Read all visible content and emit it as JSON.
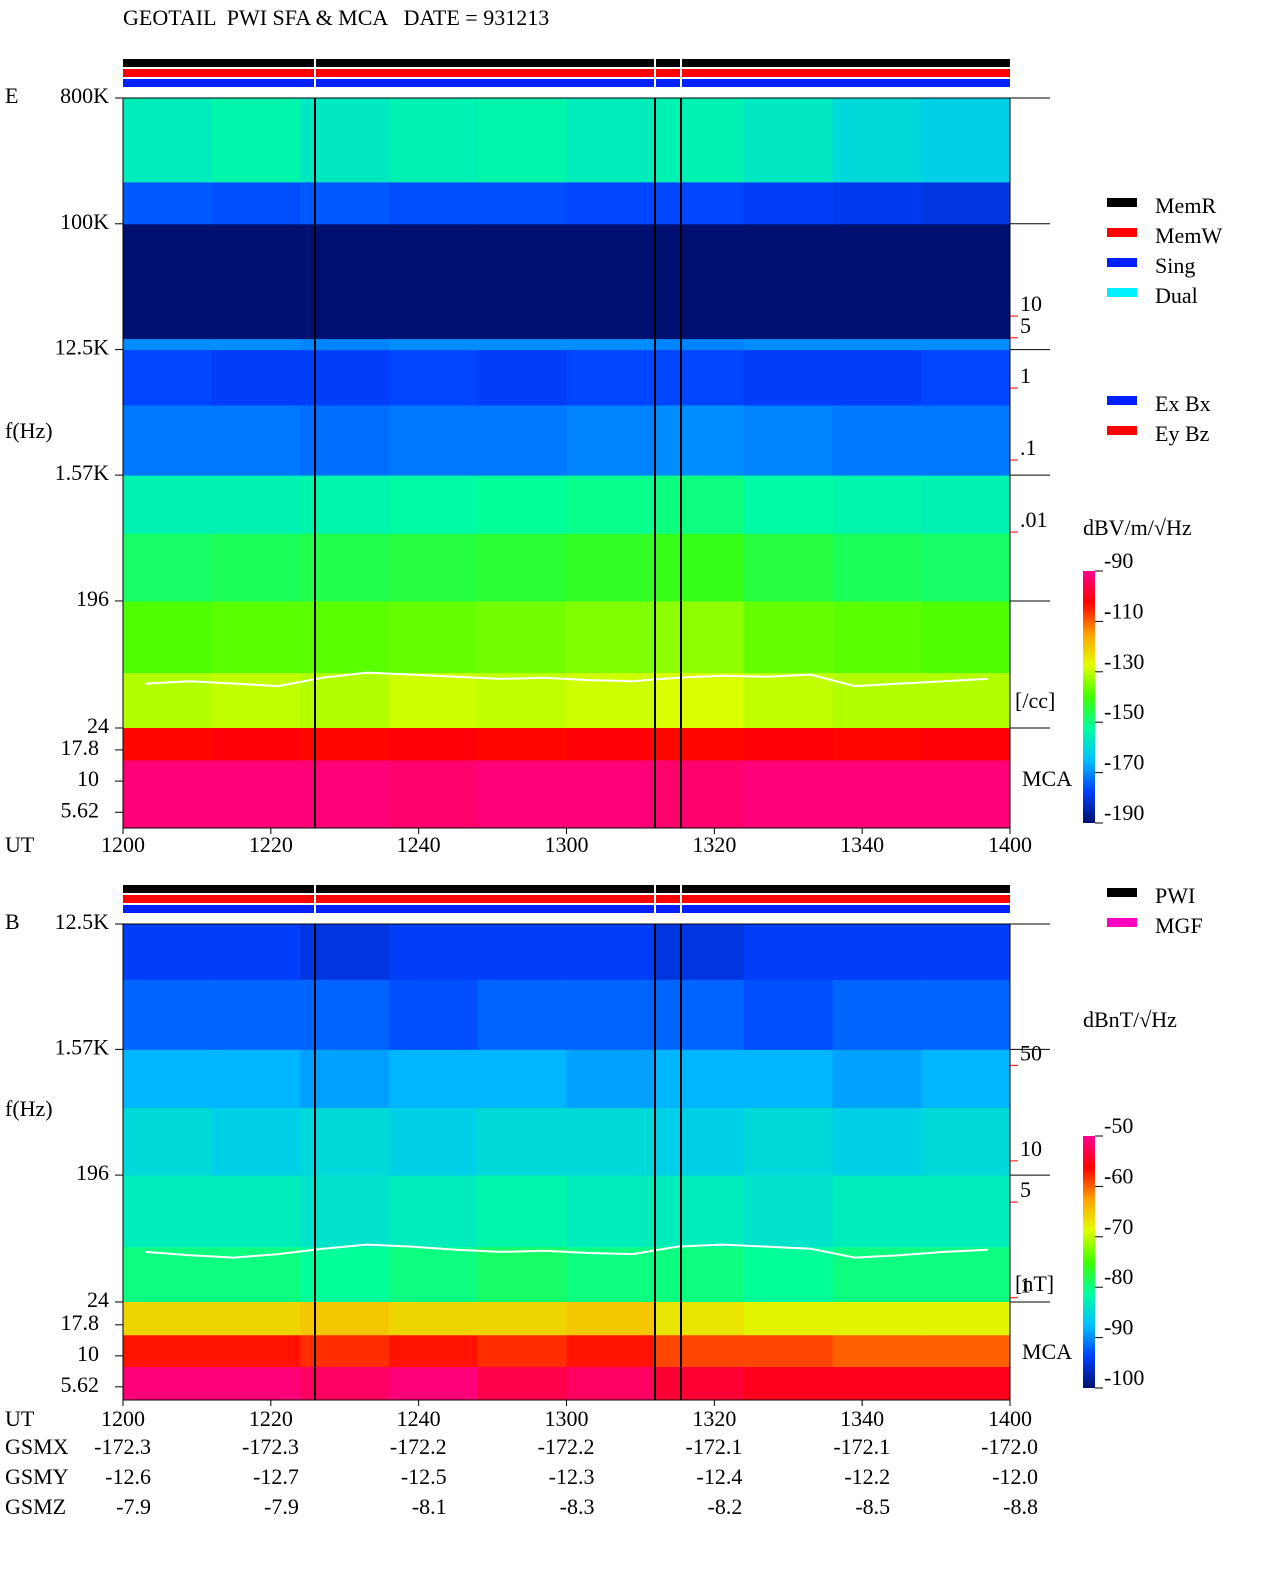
{
  "title": "GEOTAIL  PWI SFA & MCA   DATE = 931213",
  "colormap": [
    "#001070",
    "#0040ff",
    "#00c0ff",
    "#00ffa0",
    "#40ff00",
    "#e0ff00",
    "#ffa000",
    "#ff0000",
    "#ff0090"
  ],
  "chart_data": [
    {
      "type": "spectrogram",
      "component": "E",
      "ylabel": "f(Hz)",
      "xlabel": "UT",
      "xticks": [
        "1200",
        "1220",
        "1240",
        "1300",
        "1320",
        "1340",
        "1400"
      ],
      "ylim": [
        24,
        800000
      ],
      "yticks": [
        {
          "value": 800000,
          "label": "800K"
        },
        {
          "value": 100000,
          "label": "100K"
        },
        {
          "value": 12500,
          "label": "12.5K"
        },
        {
          "value": 1570,
          "label": "1.57K"
        },
        196,
        24
      ],
      "freq_edges": [
        24,
        60,
        196,
        600,
        1570,
        5000,
        12500,
        15000,
        100000,
        200000,
        800000
      ],
      "values": [
        [
          -131,
          -130,
          -131,
          -129,
          -130,
          -129,
          -128,
          -130,
          -131,
          -131
        ],
        [
          -139,
          -138,
          -138,
          -137,
          -136,
          -135,
          -134,
          -137,
          -138,
          -139
        ],
        [
          -148,
          -147,
          -146,
          -145,
          -144,
          -143,
          -142,
          -145,
          -147,
          -148
        ],
        [
          -155,
          -155,
          -154,
          -153,
          -152,
          -151,
          -150,
          -153,
          -154,
          -155
        ],
        [
          -172,
          -172,
          -173,
          -172,
          -172,
          -171,
          -170,
          -171,
          -172,
          -172
        ],
        [
          -177,
          -178,
          -178,
          -177,
          -178,
          -177,
          -177,
          -178,
          -178,
          -177
        ],
        [
          -170,
          -170,
          -171,
          -170,
          -170,
          -170,
          -171,
          -170,
          -170,
          -170
        ],
        [
          -192,
          -192,
          -192,
          -192,
          -192,
          -192,
          -192,
          -192,
          -192,
          -191
        ],
        [
          -175,
          -176,
          -175,
          -176,
          -176,
          -177,
          -177,
          -178,
          -179,
          -180
        ],
        [
          -156,
          -154,
          -157,
          -155,
          -154,
          -156,
          -155,
          -157,
          -160,
          -162
        ]
      ],
      "mca_label": "MCA",
      "mca_ylim": [
        4.2,
        26.7
      ],
      "mca_yticks": [
        17.8,
        10,
        5.62
      ],
      "mca_edges": [
        4.2,
        14.8,
        26.7
      ],
      "mca_values": [
        [
          -92,
          -92,
          -92,
          -93,
          -92,
          -92,
          -93,
          -92,
          -92,
          -92
        ],
        [
          -103,
          -102,
          -103,
          -102,
          -103,
          -102,
          -103,
          -102,
          -103,
          -102
        ]
      ],
      "line": {
        "color": "#ffffff",
        "values": [
          50,
          52,
          50,
          48,
          55,
          60,
          58,
          56,
          54,
          55,
          53,
          52,
          55,
          57,
          56,
          58,
          48,
          50,
          52,
          54
        ]
      },
      "aux_axis": {
        "label": "[/cc]",
        "color": "#ff0000",
        "lim": [
          1.9e-05,
          10700
        ],
        "ticks": [
          10,
          5,
          1,
          {
            "value": 0.1,
            "label": ".1"
          },
          {
            "value": 0.01,
            "label": ".01"
          }
        ]
      },
      "colorbar": {
        "label": "dBV/m/√Hz",
        "clim": [
          -190,
          -90
        ],
        "ticks": [
          -90,
          -110,
          -130,
          -150,
          -170,
          -190
        ]
      },
      "legends": [
        [
          {
            "name": "MemR",
            "color": "#000000"
          },
          {
            "name": "MemW",
            "color": "#ff0000"
          },
          {
            "name": "Sing",
            "color": "#0020ff"
          },
          {
            "name": "Dual",
            "color": "#00f0ff"
          }
        ],
        [
          {
            "name": "Ex Bx",
            "color": "#0020ff"
          },
          {
            "name": "Ey Bz",
            "color": "#ff0000"
          }
        ]
      ]
    },
    {
      "type": "spectrogram",
      "component": "B",
      "ylabel": "f(Hz)",
      "xlabel": "UT",
      "xticks": [
        "1200",
        "1220",
        "1240",
        "1300",
        "1320",
        "1340",
        "1400"
      ],
      "ylim": [
        24,
        12500
      ],
      "yticks": [
        {
          "value": 12500,
          "label": "12.5K"
        },
        {
          "value": 1570,
          "label": "1.57K"
        },
        196,
        24
      ],
      "freq_edges": [
        24,
        60,
        196,
        600,
        1570,
        5000,
        12500
      ],
      "values": [
        [
          -80,
          -80,
          -81,
          -80,
          -79,
          -80,
          -80,
          -81,
          -80,
          -80
        ],
        [
          -83,
          -83,
          -84,
          -83,
          -82,
          -83,
          -83,
          -84,
          -83,
          -83
        ],
        [
          -85,
          -86,
          -85,
          -86,
          -85,
          -85,
          -86,
          -85,
          -86,
          -85
        ],
        [
          -88,
          -88,
          -89,
          -88,
          -88,
          -89,
          -88,
          -88,
          -89,
          -88
        ],
        [
          -92,
          -92,
          -92,
          -93,
          -92,
          -92,
          -92,
          -93,
          -92,
          -92
        ],
        [
          -94,
          -94,
          -95,
          -94,
          -94,
          -94,
          -95,
          -94,
          -94,
          -94
        ]
      ],
      "mca_label": "MCA",
      "mca_ylim": [
        4.4,
        27.2
      ],
      "mca_yticks": [
        17.8,
        10,
        5.62
      ],
      "mca_edges": [
        4.4,
        8.2,
        14.8,
        27.2
      ],
      "mca_values": [
        [
          -51,
          -51,
          -52,
          -51,
          -53,
          -52,
          -54,
          -55,
          -55,
          -55
        ],
        [
          -57,
          -57,
          -58,
          -57,
          -58,
          -57,
          -59,
          -59,
          -60,
          -60
        ],
        [
          -66,
          -66,
          -65,
          -66,
          -66,
          -65,
          -67,
          -68,
          -68,
          -68
        ]
      ],
      "line": {
        "color": "#ffffff",
        "values": [
          55,
          52,
          50,
          53,
          58,
          62,
          60,
          57,
          55,
          56,
          54,
          53,
          60,
          62,
          60,
          58,
          50,
          52,
          55,
          57
        ]
      },
      "aux_axis": {
        "label": "[nT]",
        "color": "#ff0000",
        "lim": [
          0.93,
          540
        ],
        "ticks": [
          50,
          10,
          5,
          1
        ]
      },
      "colorbar": {
        "label": "dBnT/√Hz",
        "clim": [
          -100,
          -50
        ],
        "ticks": [
          -50,
          -60,
          -70,
          -80,
          -90,
          -100
        ]
      },
      "legends": [
        [
          {
            "name": "PWI",
            "color": "#000000"
          },
          {
            "name": "MGF",
            "color": "#ff00c0"
          }
        ]
      ]
    }
  ],
  "orbit": {
    "rows": [
      {
        "label": "GSMX",
        "values": [
          "-172.3",
          "-172.3",
          "-172.2",
          "-172.2",
          "-172.1",
          "-172.1",
          "-172.0"
        ]
      },
      {
        "label": "GSMY",
        "values": [
          "-12.6",
          "-12.7",
          "-12.5",
          "-12.3",
          "-12.4",
          "-12.2",
          "-12.0"
        ]
      },
      {
        "label": "GSMZ",
        "values": [
          "-7.9",
          "-7.9",
          "-8.1",
          "-8.3",
          "-8.2",
          "-8.5",
          "-8.8"
        ]
      }
    ]
  }
}
